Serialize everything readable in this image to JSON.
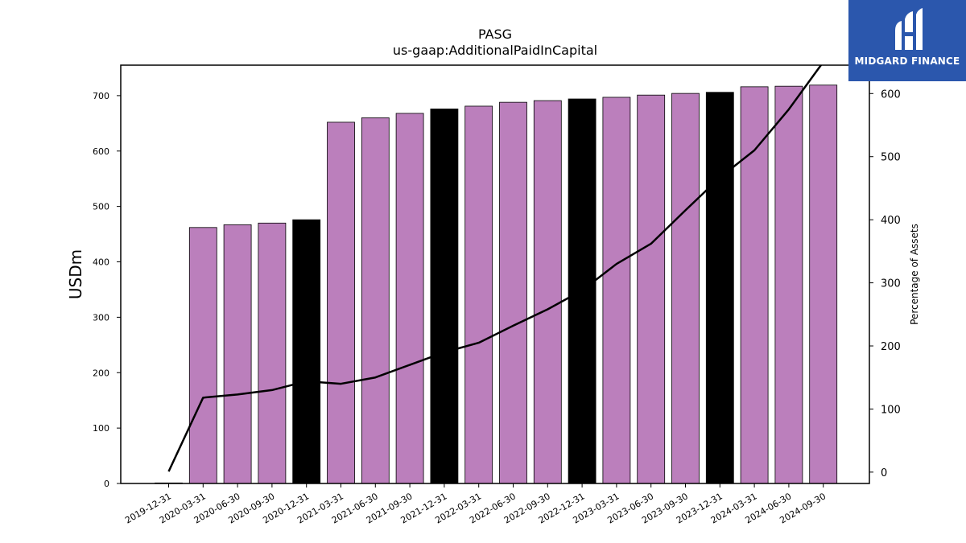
{
  "chart_data": {
    "type": "bar",
    "title": "PASG",
    "subtitle": "us-gaap:AdditionalPaidInCapital",
    "ylabel": "USDm",
    "ylabel_right": "Percentage of Assets",
    "ylim": [
      0,
      755
    ],
    "ylim_right": [
      -18,
      645
    ],
    "yticks": [
      0,
      100,
      200,
      300,
      400,
      500,
      600,
      700
    ],
    "yticks_right": [
      0,
      100,
      200,
      300,
      400,
      500,
      600
    ],
    "categories": [
      "2019-12-31",
      "2020-03-31",
      "2020-06-30",
      "2020-09-30",
      "2020-12-31",
      "2021-03-31",
      "2021-06-30",
      "2021-09-30",
      "2021-12-31",
      "2022-03-31",
      "2022-06-30",
      "2022-09-30",
      "2022-12-31",
      "2023-03-31",
      "2023-06-30",
      "2023-09-30",
      "2023-12-31",
      "2024-03-31",
      "2024-06-30",
      "2024-09-30"
    ],
    "series": [
      {
        "type": "bar",
        "axis": "left",
        "values": [
          1,
          462,
          467,
          470,
          476,
          652,
          660,
          668,
          676,
          681,
          688,
          691,
          694,
          697,
          701,
          704,
          706,
          716,
          717,
          719
        ],
        "colors": [
          "#000000",
          "#bb7fbc",
          "#bb7fbc",
          "#bb7fbc",
          "#000000",
          "#bb7fbc",
          "#bb7fbc",
          "#bb7fbc",
          "#000000",
          "#bb7fbc",
          "#bb7fbc",
          "#bb7fbc",
          "#000000",
          "#bb7fbc",
          "#bb7fbc",
          "#bb7fbc",
          "#000000",
          "#bb7fbc",
          "#bb7fbc",
          "#bb7fbc"
        ]
      },
      {
        "type": "line",
        "axis": "right",
        "color": "#000000",
        "values": [
          1,
          118,
          123,
          130,
          144,
          140,
          150,
          170,
          190,
          205,
          232,
          258,
          288,
          330,
          362,
          415,
          467,
          510,
          575,
          650
        ]
      }
    ],
    "grid": false,
    "legend": "none"
  },
  "logo": {
    "text": "MIDGARD FINANCE",
    "color": "#2b57ad"
  }
}
